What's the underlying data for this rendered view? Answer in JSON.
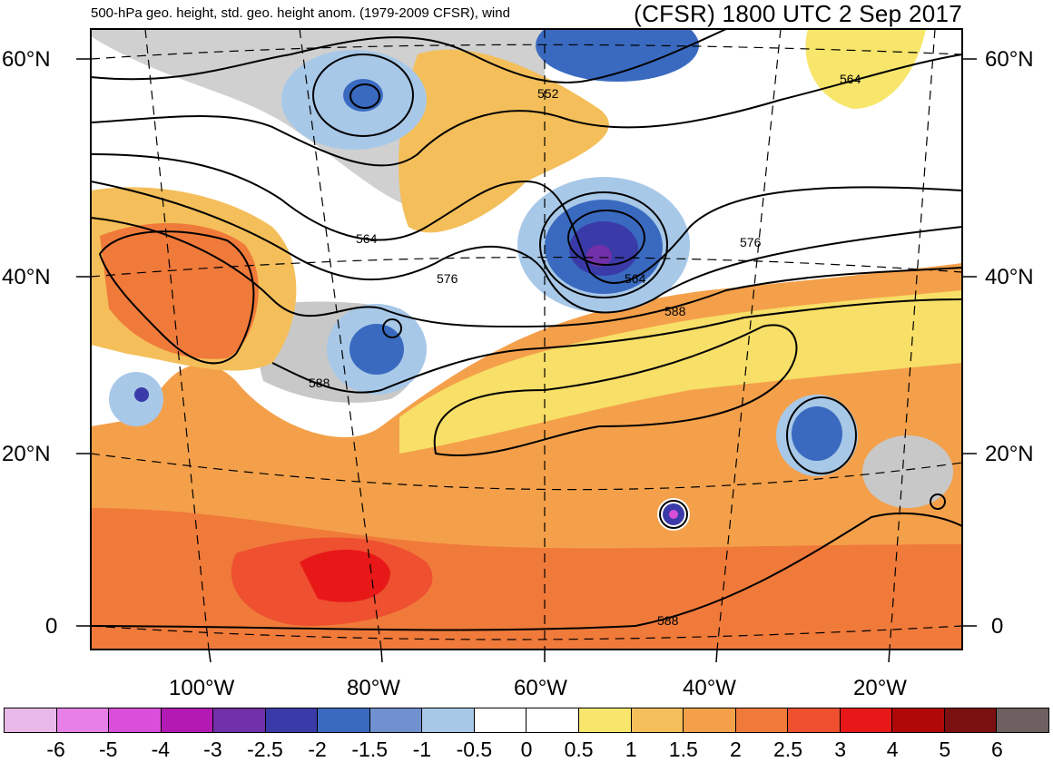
{
  "title_left": "500-hPa geo. height, std. geo. height anom. (1979-2009 CFSR), wind",
  "title_right": "(CFSR) 1800 UTC 2 Sep 2017",
  "lat_labels": [
    "60°N",
    "40°N",
    "20°N",
    "0"
  ],
  "lon_labels": [
    "100°W",
    "80°W",
    "60°W",
    "40°W",
    "20°W"
  ],
  "contour_labels": [
    "552",
    "564",
    "564",
    "564",
    "576",
    "576",
    "588",
    "588",
    "588"
  ],
  "colorbar": {
    "colors": [
      "#e8b8e8",
      "#e680e6",
      "#d94fd9",
      "#b31ab3",
      "#7030a8",
      "#3a3aa8",
      "#3a6ac0",
      "#7090d0",
      "#a8c8e8",
      "#ffffff",
      "#ffffff",
      "#f7e66b",
      "#f4bf5a",
      "#f4a04a",
      "#f07a3a",
      "#ee5030",
      "#e81818",
      "#b00808",
      "#7a1010",
      "#6e6060"
    ],
    "ticks": [
      "-6",
      "-5",
      "-4",
      "-3",
      "-2.5",
      "-2",
      "-1.5",
      "-1",
      "-0.5",
      "0",
      "0.5",
      "1",
      "1.5",
      "2",
      "2.5",
      "3",
      "4",
      "5",
      "6"
    ]
  }
}
